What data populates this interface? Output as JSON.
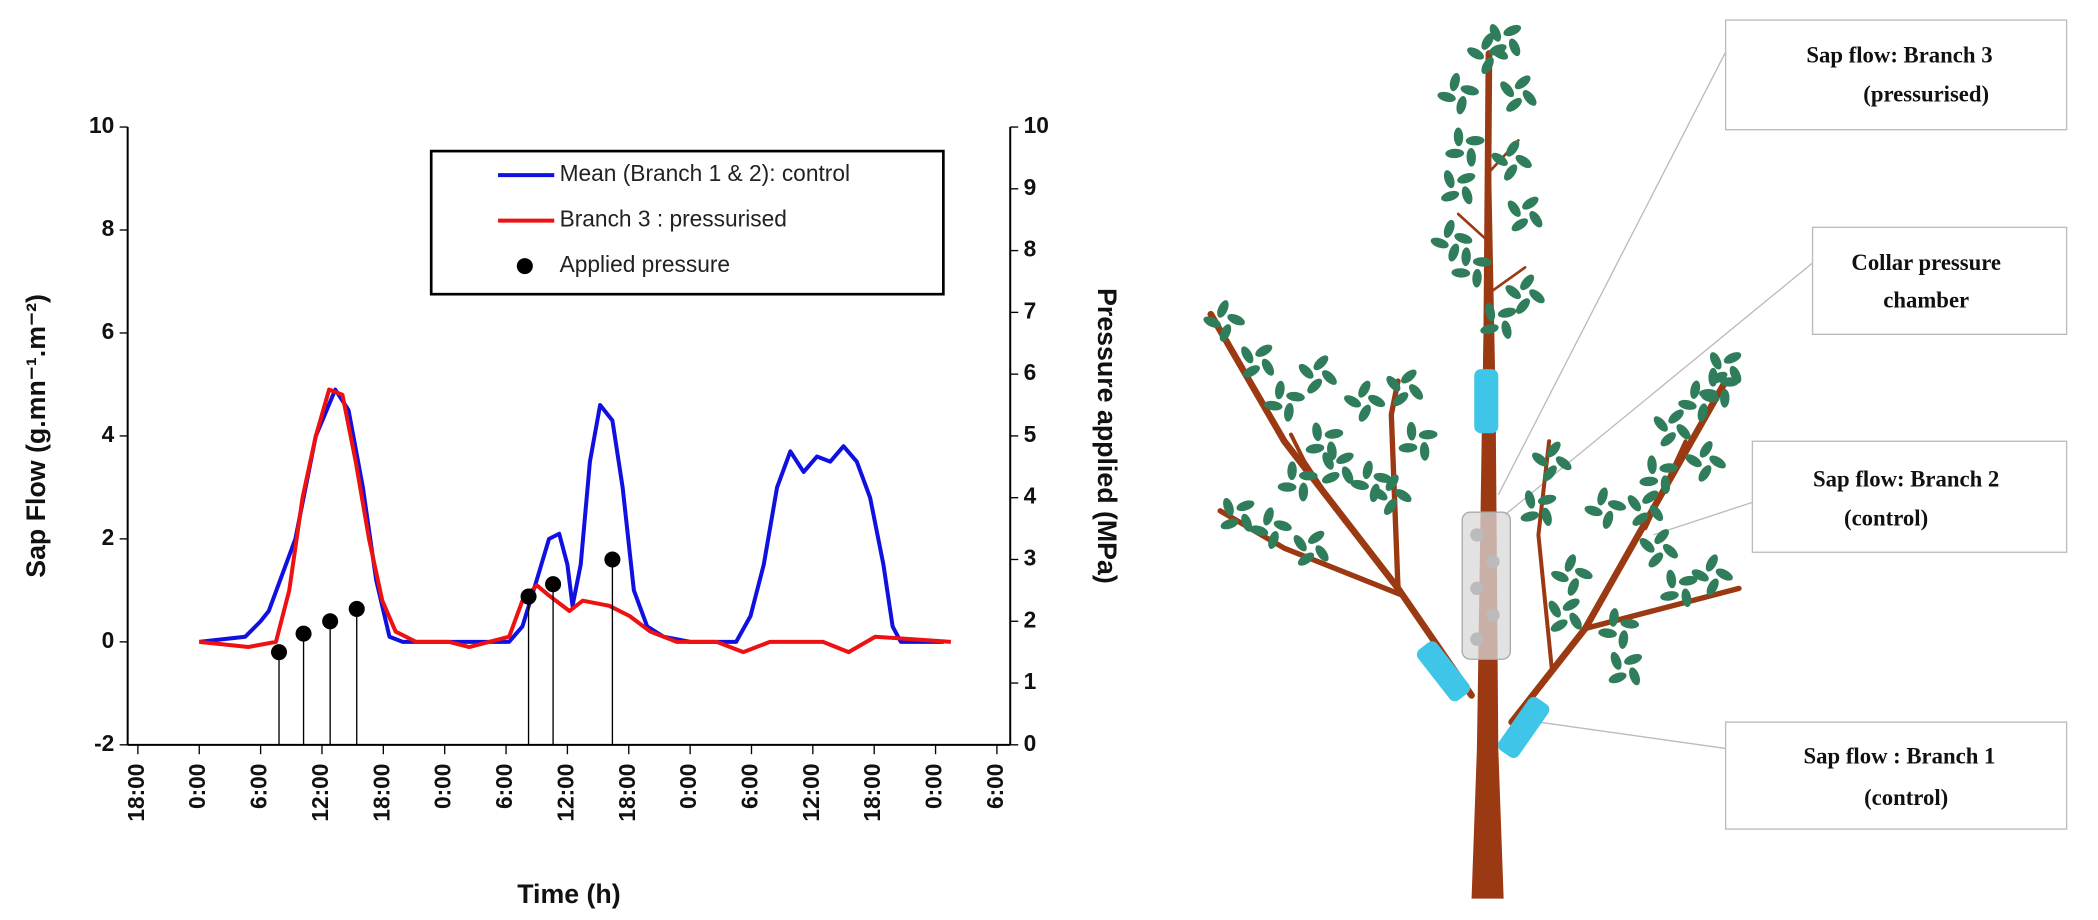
{
  "chart_data": {
    "type": "line",
    "x_label": "Time (h)",
    "y_label": "Sap Flow (g.mn⁻¹.m⁻²)",
    "y2_label": "Pressure applied (MPa)",
    "xlim": [
      -7,
      79.3
    ],
    "xticks": [
      {
        "value": -6,
        "label": "18:00"
      },
      {
        "value": 0,
        "label": "0:00"
      },
      {
        "value": 6,
        "label": "6:00"
      },
      {
        "value": 12,
        "label": "12:00"
      },
      {
        "value": 18,
        "label": "18:00"
      },
      {
        "value": 24,
        "label": "0:00"
      },
      {
        "value": 30,
        "label": "6:00"
      },
      {
        "value": 36,
        "label": "12:00"
      },
      {
        "value": 42,
        "label": "18:00"
      },
      {
        "value": 48,
        "label": "0:00"
      },
      {
        "value": 54,
        "label": "6:00"
      },
      {
        "value": 60,
        "label": "12:00"
      },
      {
        "value": 66,
        "label": "18:00"
      },
      {
        "value": 72,
        "label": "0:00"
      },
      {
        "value": 78,
        "label": "6:00"
      }
    ],
    "ylim": [
      -2,
      10
    ],
    "yticks": [
      -2,
      0,
      2,
      4,
      6,
      8,
      10
    ],
    "y2lim": [
      0,
      10
    ],
    "y2ticks": [
      0,
      1,
      2,
      3,
      4,
      5,
      6,
      7,
      8,
      9,
      10
    ],
    "legend": "upper right",
    "series": [
      {
        "name": "Mean (Branch 1 & 2): control",
        "color": "#1010e0",
        "x": [
          0,
          4.5,
          6,
          6.8,
          9.4,
          11.4,
          13.3,
          14.6,
          16,
          17.3,
          18.6,
          19.9,
          30.3,
          31.6,
          33,
          34.2,
          35.2,
          36,
          36.5,
          37.3,
          38.2,
          39.2,
          40.4,
          41.4,
          42.5,
          43.8,
          45.4,
          48,
          52.5,
          53.9,
          55.2,
          56.5,
          57.8,
          59.1,
          60.4,
          61.7,
          63,
          64.3,
          65.6,
          66.9,
          67.8,
          68.6,
          72.8
        ],
        "values": [
          0,
          0.1,
          0.4,
          0.6,
          2,
          4,
          4.9,
          4.5,
          3,
          1.2,
          0.1,
          0,
          0,
          0.3,
          1.2,
          2,
          2.1,
          1.5,
          0.7,
          1.5,
          3.5,
          4.6,
          4.3,
          3,
          1,
          0.3,
          0.1,
          0,
          0,
          0.5,
          1.5,
          3,
          3.7,
          3.3,
          3.6,
          3.5,
          3.8,
          3.5,
          2.8,
          1.5,
          0.3,
          0,
          0
        ]
      },
      {
        "name": "Branch 3 : pressurised",
        "color": "#ee1111",
        "x": [
          0,
          4.8,
          7.5,
          8.8,
          10.1,
          11.4,
          12.7,
          14,
          15.3,
          16.6,
          17.9,
          19.2,
          21.2,
          24.4,
          26.4,
          30.3,
          31.6,
          33,
          34.2,
          36.2,
          37.5,
          40.1,
          42.1,
          44.1,
          46.7,
          50.6,
          53.2,
          55.8,
          61,
          63.5,
          66.1,
          73.5
        ],
        "values": [
          0,
          -0.1,
          0,
          1,
          2.8,
          4,
          4.9,
          4.8,
          3.5,
          2,
          0.8,
          0.2,
          0,
          0,
          -0.1,
          0.1,
          0.8,
          1.1,
          0.9,
          0.6,
          0.8,
          0.7,
          0.5,
          0.2,
          0,
          0,
          -0.2,
          0,
          0,
          -0.2,
          0.1,
          0
        ]
      },
      {
        "name": "Applied pressure",
        "type": "scatter",
        "axis": "y2",
        "color": "#000000",
        "x": [
          7.8,
          10.2,
          12.8,
          15.4,
          32.2,
          34.6,
          40.4
        ],
        "values": [
          1.5,
          1.8,
          2.0,
          2.2,
          2.4,
          2.6,
          3.0
        ]
      }
    ]
  },
  "diagram": {
    "labels": [
      [
        "Sap flow: Branch 3",
        "(pressurised)"
      ],
      [
        "Collar pressure",
        "chamber"
      ],
      [
        "Sap flow: Branch 2",
        "(control)"
      ],
      [
        "Sap flow : Branch 1",
        "(control)"
      ]
    ]
  }
}
